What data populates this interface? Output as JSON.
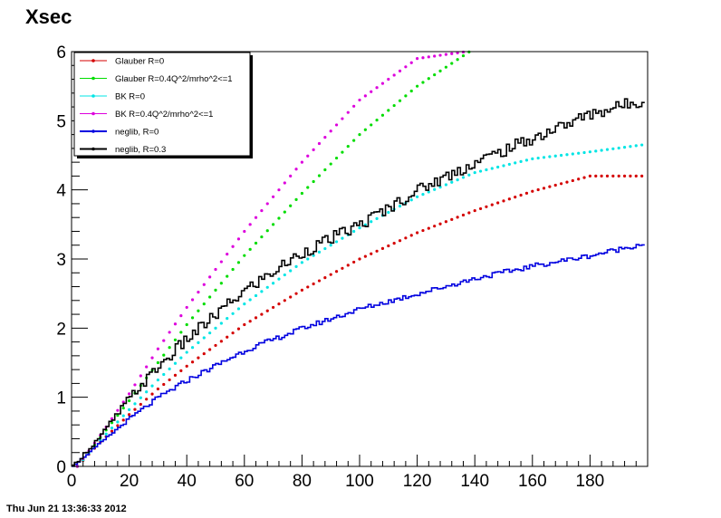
{
  "chart_data": {
    "type": "line",
    "title": "Xsec",
    "xlabel": "",
    "ylabel": "",
    "xlim": [
      0,
      200
    ],
    "ylim": [
      0,
      6
    ],
    "x_ticks": [
      0,
      20,
      40,
      60,
      80,
      100,
      120,
      140,
      160,
      180
    ],
    "y_ticks": [
      0,
      1,
      2,
      3,
      4,
      5,
      6
    ],
    "grid": false,
    "legend_position": "top-left",
    "series": [
      {
        "name": "Glauber R=0",
        "color": "#d40000",
        "style": "markers",
        "points": [
          [
            2,
            0.0
          ],
          [
            10,
            0.35
          ],
          [
            20,
            0.75
          ],
          [
            30,
            1.12
          ],
          [
            40,
            1.45
          ],
          [
            60,
            2.05
          ],
          [
            80,
            2.55
          ],
          [
            100,
            3.0
          ],
          [
            120,
            3.38
          ],
          [
            140,
            3.7
          ],
          [
            160,
            3.98
          ],
          [
            180,
            4.2
          ],
          [
            198,
            4.2
          ]
        ]
      },
      {
        "name": "Glauber R=0.4Q^2/mrho^2<=1",
        "color": "#00dd00",
        "style": "markers",
        "points": [
          [
            2,
            0.0
          ],
          [
            10,
            0.42
          ],
          [
            20,
            0.95
          ],
          [
            30,
            1.5
          ],
          [
            40,
            2.05
          ],
          [
            60,
            3.05
          ],
          [
            80,
            3.95
          ],
          [
            100,
            4.8
          ],
          [
            120,
            5.5
          ],
          [
            140,
            6.05
          ],
          [
            157,
            6.0
          ]
        ]
      },
      {
        "name": "BK R=0",
        "color": "#00e5e5",
        "style": "markers",
        "points": [
          [
            2,
            0.0
          ],
          [
            10,
            0.38
          ],
          [
            20,
            0.82
          ],
          [
            30,
            1.25
          ],
          [
            40,
            1.65
          ],
          [
            60,
            2.35
          ],
          [
            80,
            2.95
          ],
          [
            100,
            3.45
          ],
          [
            120,
            3.9
          ],
          [
            140,
            4.25
          ],
          [
            160,
            4.45
          ],
          [
            180,
            4.55
          ],
          [
            198,
            4.65
          ]
        ]
      },
      {
        "name": "BK R=0.4Q^2/mrho^2<=1",
        "color": "#dd00dd",
        "style": "markers",
        "points": [
          [
            2,
            0.0
          ],
          [
            10,
            0.45
          ],
          [
            20,
            1.05
          ],
          [
            30,
            1.7
          ],
          [
            40,
            2.3
          ],
          [
            60,
            3.4
          ],
          [
            80,
            4.4
          ],
          [
            100,
            5.3
          ],
          [
            120,
            5.9
          ],
          [
            137,
            6.0
          ]
        ]
      },
      {
        "name": "neglib, R=0",
        "color": "#0000e0",
        "style": "step",
        "points": [
          [
            0,
            0.0
          ],
          [
            10,
            0.35
          ],
          [
            20,
            0.7
          ],
          [
            30,
            1.0
          ],
          [
            40,
            1.25
          ],
          [
            60,
            1.68
          ],
          [
            80,
            2.0
          ],
          [
            100,
            2.28
          ],
          [
            120,
            2.5
          ],
          [
            140,
            2.72
          ],
          [
            160,
            2.9
          ],
          [
            180,
            3.05
          ],
          [
            198,
            3.22
          ]
        ]
      },
      {
        "name": "neglib, R=0.3",
        "color": "#000000",
        "style": "step",
        "points": [
          [
            0,
            0.0
          ],
          [
            10,
            0.45
          ],
          [
            20,
            1.0
          ],
          [
            30,
            1.45
          ],
          [
            40,
            1.85
          ],
          [
            60,
            2.55
          ],
          [
            80,
            3.1
          ],
          [
            100,
            3.5
          ],
          [
            120,
            4.0
          ],
          [
            140,
            4.4
          ],
          [
            160,
            4.75
          ],
          [
            180,
            5.1
          ],
          [
            198,
            5.3
          ]
        ]
      }
    ]
  },
  "footer": {
    "timestamp": "Thu Jun 21 13:36:33 2012"
  }
}
